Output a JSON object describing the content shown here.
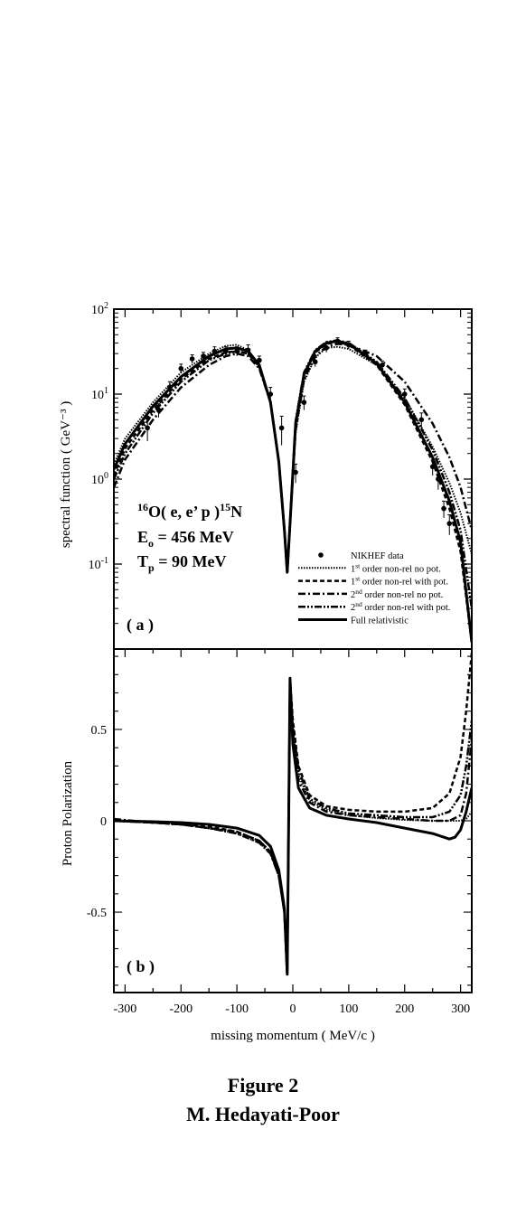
{
  "chart_data": [
    {
      "type": "line",
      "panel_label": "( a )",
      "ylabel": "spectral function ( GeV⁻³ )",
      "yscale": "log",
      "ylim": [
        0.01,
        100
      ],
      "xlim": [
        -320,
        320
      ],
      "y_ticks": [
        {
          "value": 100,
          "base": "10",
          "exp": "2"
        },
        {
          "value": 10,
          "base": "10",
          "exp": "1"
        },
        {
          "value": 1,
          "base": "10",
          "exp": "0"
        },
        {
          "value": 0.1,
          "base": "10",
          "exp": "-1"
        }
      ],
      "annotation": {
        "line1": {
          "pre": "16",
          "a": "O( e, e’ p )",
          "post": "15",
          "b": "N"
        },
        "line2": {
          "a": "E",
          "sub": "o",
          "b": " = 456 MeV"
        },
        "line3": {
          "a": "T",
          "sub": "p",
          "b": " = 90 MeV"
        }
      },
      "legend_position": "bottom-right",
      "legend": [
        {
          "kind": "marker",
          "label": "NIKHEF data"
        },
        {
          "kind": "line",
          "pre": "1",
          "sup": "st",
          "label": " order non-rel no pot.",
          "dash": "1.5,1.5",
          "width": 2
        },
        {
          "kind": "line",
          "pre": "1",
          "sup": "st",
          "label": " order non-rel with pot.",
          "dash": "5,3",
          "width": 2.5
        },
        {
          "kind": "line",
          "pre": "2",
          "sup": "nd",
          "label": " order non-rel no pot.",
          "dash": "8,3,2,3",
          "width": 2.5
        },
        {
          "kind": "line",
          "pre": "2",
          "sup": "nd",
          "label": " order non-rel with pot.",
          "dash": "8,2,2,2,2,2",
          "width": 2.5
        },
        {
          "kind": "line",
          "label": "Full relativistic",
          "dash": "",
          "width": 3
        }
      ],
      "series": [
        {
          "label_ref": 1,
          "x": [
            -320,
            -300,
            -250,
            -200,
            -150,
            -120,
            -100,
            -80,
            -60,
            -40,
            -25,
            -15,
            -10,
            -5,
            5,
            20,
            40,
            60,
            80,
            100,
            150,
            200,
            250,
            280,
            300,
            320
          ],
          "y": [
            1.5,
            3.0,
            8.0,
            18,
            30,
            37,
            38,
            33,
            22,
            8,
            1.6,
            0.25,
            0.08,
            0.3,
            3.5,
            14,
            27,
            35,
            36,
            34,
            22,
            9.0,
            2.4,
            0.9,
            0.4,
            0.13
          ]
        },
        {
          "label_ref": 2,
          "x": [
            -320,
            -300,
            -250,
            -200,
            -150,
            -120,
            -100,
            -80,
            -60,
            -40,
            -25,
            -15,
            -10,
            -5,
            5,
            20,
            40,
            60,
            80,
            100,
            150,
            200,
            250,
            280,
            300,
            320
          ],
          "y": [
            1.1,
            2.3,
            6.5,
            15,
            26,
            31,
            32,
            30,
            21,
            8,
            1.6,
            0.25,
            0.08,
            0.3,
            4.5,
            17,
            31,
            39,
            41,
            38,
            22,
            7.5,
            1.6,
            0.45,
            0.14,
            0.012
          ]
        },
        {
          "label_ref": 3,
          "x": [
            -320,
            -300,
            -250,
            -200,
            -150,
            -120,
            -100,
            -80,
            -60,
            -40,
            -25,
            -15,
            -10,
            -5,
            5,
            20,
            40,
            60,
            80,
            100,
            150,
            200,
            250,
            280,
            300,
            320
          ],
          "y": [
            0.8,
            1.7,
            5.0,
            12,
            22,
            28,
            30,
            28,
            20,
            8,
            1.6,
            0.25,
            0.08,
            0.3,
            3.8,
            15,
            28,
            36,
            39,
            38,
            28,
            14,
            4.5,
            1.8,
            0.8,
            0.25
          ]
        },
        {
          "label_ref": 4,
          "x": [
            -320,
            -300,
            -250,
            -200,
            -150,
            -120,
            -100,
            -80,
            -60,
            -40,
            -25,
            -15,
            -10,
            -5,
            5,
            20,
            40,
            60,
            80,
            100,
            150,
            200,
            250,
            280,
            300,
            320
          ],
          "y": [
            1.0,
            2.0,
            6.0,
            14,
            25,
            30,
            32,
            30,
            21,
            8,
            1.6,
            0.25,
            0.08,
            0.3,
            4.8,
            18,
            33,
            41,
            43,
            40,
            24,
            9,
            2.2,
            0.7,
            0.25,
            0.03
          ]
        },
        {
          "label_ref": 5,
          "x": [
            -320,
            -300,
            -250,
            -200,
            -150,
            -120,
            -100,
            -80,
            -60,
            -40,
            -25,
            -15,
            -10,
            -5,
            5,
            20,
            40,
            60,
            80,
            100,
            150,
            200,
            250,
            280,
            300,
            320
          ],
          "y": [
            1.3,
            2.6,
            7.2,
            16,
            28,
            34,
            35,
            32,
            22,
            8,
            1.6,
            0.25,
            0.08,
            0.3,
            4.5,
            17,
            32,
            40,
            42,
            39,
            23,
            8,
            1.8,
            0.55,
            0.18,
            0.012
          ]
        }
      ],
      "data_points": {
        "x": [
          -260,
          -240,
          -220,
          -200,
          -180,
          -160,
          -140,
          -120,
          -100,
          -80,
          -60,
          -40,
          -20,
          5,
          20,
          40,
          60,
          80,
          100,
          130,
          160,
          200,
          230,
          250,
          260,
          270,
          280
        ],
        "y": [
          4.0,
          6.5,
          12,
          20,
          26,
          28,
          32,
          32,
          32,
          33,
          25,
          10,
          4.0,
          1.2,
          8.0,
          24,
          35,
          42,
          38,
          30,
          22,
          10,
          5.0,
          1.4,
          1.0,
          0.45,
          0.3
        ],
        "err": [
          1.2,
          1.2,
          2,
          2.5,
          3,
          3,
          4,
          4,
          4,
          5,
          3,
          2,
          1.5,
          0.3,
          1.5,
          3,
          4,
          4,
          4,
          3,
          2.5,
          1.5,
          1.0,
          0.3,
          0.25,
          0.1,
          0.08
        ]
      }
    },
    {
      "type": "line",
      "panel_label": "( b )",
      "ylabel": "Proton Polarization",
      "ylim": [
        -0.94,
        0.94
      ],
      "xlim": [
        -320,
        320
      ],
      "y_ticks": [
        {
          "value": 0.5,
          "label": "0.5"
        },
        {
          "value": 0,
          "label": "0"
        },
        {
          "value": -0.5,
          "label": "-0.5"
        }
      ],
      "x_ticks": [
        {
          "value": -300,
          "label": "-300"
        },
        {
          "value": -200,
          "label": "-200"
        },
        {
          "value": -100,
          "label": "-100"
        },
        {
          "value": 0,
          "label": "0"
        },
        {
          "value": 100,
          "label": "100"
        },
        {
          "value": 200,
          "label": "200"
        },
        {
          "value": 300,
          "label": "300"
        }
      ],
      "xlabel": "missing momentum ( MeV/c )",
      "series": [
        {
          "label_ref": 1,
          "x": [
            -320,
            -250,
            -200,
            -150,
            -100,
            -60,
            -40,
            -25,
            -15,
            -10,
            -5,
            0,
            10,
            30,
            60,
            100,
            150,
            200,
            250,
            280,
            300,
            310,
            320
          ],
          "y": [
            0.0,
            -0.01,
            -0.02,
            -0.04,
            -0.07,
            -0.12,
            -0.18,
            -0.3,
            -0.5,
            -0.84,
            0.78,
            0.5,
            0.25,
            0.11,
            0.06,
            0.03,
            0.015,
            0.005,
            0.0,
            0.0,
            0.0,
            0.01,
            0.05
          ]
        },
        {
          "label_ref": 2,
          "x": [
            -320,
            -250,
            -200,
            -150,
            -100,
            -60,
            -40,
            -25,
            -15,
            -10,
            -5,
            0,
            10,
            30,
            60,
            100,
            150,
            200,
            250,
            280,
            300,
            310,
            320
          ],
          "y": [
            0.0,
            -0.01,
            -0.02,
            -0.03,
            -0.06,
            -0.11,
            -0.17,
            -0.3,
            -0.5,
            -0.84,
            0.78,
            0.55,
            0.3,
            0.14,
            0.08,
            0.06,
            0.05,
            0.05,
            0.07,
            0.15,
            0.35,
            0.6,
            0.92
          ]
        },
        {
          "label_ref": 3,
          "x": [
            -320,
            -250,
            -200,
            -150,
            -100,
            -60,
            -40,
            -25,
            -15,
            -10,
            -5,
            0,
            10,
            30,
            60,
            100,
            150,
            200,
            250,
            280,
            300,
            310,
            320
          ],
          "y": [
            0.01,
            -0.01,
            -0.02,
            -0.04,
            -0.07,
            -0.12,
            -0.18,
            -0.3,
            -0.5,
            -0.84,
            0.78,
            0.48,
            0.22,
            0.1,
            0.05,
            0.03,
            0.02,
            0.01,
            0.0,
            0.0,
            0.03,
            0.15,
            0.45
          ]
        },
        {
          "label_ref": 4,
          "x": [
            -320,
            -250,
            -200,
            -150,
            -100,
            -60,
            -40,
            -25,
            -15,
            -10,
            -5,
            0,
            10,
            30,
            60,
            100,
            150,
            200,
            250,
            280,
            300,
            310,
            320
          ],
          "y": [
            0.0,
            -0.01,
            -0.02,
            -0.04,
            -0.06,
            -0.11,
            -0.17,
            -0.3,
            -0.5,
            -0.84,
            0.78,
            0.52,
            0.28,
            0.12,
            0.07,
            0.04,
            0.03,
            0.02,
            0.02,
            0.05,
            0.14,
            0.3,
            0.55
          ]
        },
        {
          "label_ref": 5,
          "x": [
            -320,
            -250,
            -200,
            -150,
            -100,
            -60,
            -40,
            -25,
            -15,
            -10,
            -5,
            0,
            10,
            30,
            60,
            100,
            150,
            200,
            250,
            280,
            290,
            300,
            310,
            320
          ],
          "y": [
            0.0,
            -0.005,
            -0.01,
            -0.02,
            -0.04,
            -0.08,
            -0.14,
            -0.27,
            -0.48,
            -0.84,
            0.78,
            0.42,
            0.18,
            0.07,
            0.03,
            0.01,
            -0.01,
            -0.04,
            -0.07,
            -0.1,
            -0.09,
            -0.05,
            0.05,
            0.18
          ]
        }
      ]
    }
  ],
  "caption": {
    "title": "Figure 2",
    "author": "M. Hedayati-Poor"
  }
}
